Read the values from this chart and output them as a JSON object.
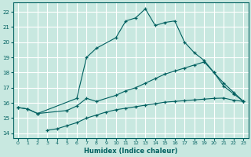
{
  "xlabel": "Humidex (Indice chaleur)",
  "bg_color": "#c8e8e0",
  "line_color": "#006060",
  "grid_color": "#ffffff",
  "xlim": [
    -0.5,
    23.5
  ],
  "ylim": [
    13.7,
    22.6
  ],
  "yticks": [
    14,
    15,
    16,
    17,
    18,
    19,
    20,
    21,
    22
  ],
  "xticks": [
    0,
    1,
    2,
    3,
    4,
    5,
    6,
    7,
    8,
    9,
    10,
    11,
    12,
    13,
    14,
    15,
    16,
    17,
    18,
    19,
    20,
    21,
    22,
    23
  ],
  "line1_x": [
    0,
    1,
    2,
    6,
    7,
    8,
    10,
    11,
    12,
    13,
    14,
    15,
    16,
    17,
    18,
    19,
    20,
    21,
    22,
    23
  ],
  "line1_y": [
    15.7,
    15.6,
    15.3,
    16.3,
    19.0,
    19.6,
    20.3,
    21.4,
    21.6,
    22.2,
    21.1,
    21.3,
    21.4,
    20.0,
    19.3,
    18.8,
    18.0,
    17.1,
    16.6,
    16.1
  ],
  "line2_x": [
    0,
    1,
    2,
    5,
    6,
    7,
    8,
    10,
    11,
    12,
    13,
    14,
    15,
    16,
    17,
    18,
    19,
    20,
    21,
    22,
    23
  ],
  "line2_y": [
    15.7,
    15.6,
    15.3,
    15.5,
    15.8,
    16.3,
    16.1,
    16.5,
    16.8,
    17.0,
    17.3,
    17.6,
    17.9,
    18.1,
    18.3,
    18.5,
    18.7,
    18.0,
    17.3,
    16.7,
    16.1
  ],
  "line3_x": [
    3,
    4,
    5,
    6,
    7,
    8,
    9,
    10,
    11,
    12,
    13,
    14,
    15,
    16,
    17,
    18,
    19,
    20,
    21,
    22,
    23
  ],
  "line3_y": [
    14.2,
    14.3,
    14.5,
    14.7,
    15.0,
    15.2,
    15.4,
    15.55,
    15.65,
    15.75,
    15.85,
    15.95,
    16.05,
    16.1,
    16.15,
    16.2,
    16.25,
    16.3,
    16.32,
    16.18,
    16.1
  ]
}
